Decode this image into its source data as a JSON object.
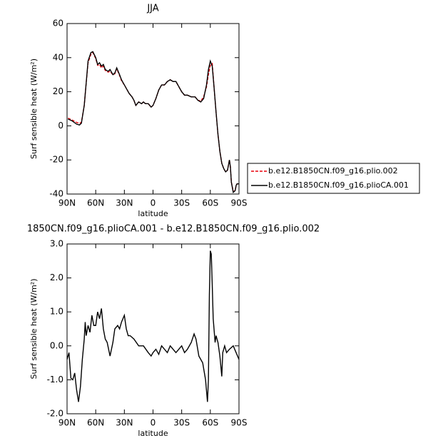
{
  "chart_data": [
    {
      "type": "line",
      "title": "JJA",
      "x_label": "latitude",
      "y_label": "Surf sensible heat (W/m²)",
      "xlim": [
        90,
        -90
      ],
      "xticks": [
        {
          "value": 90,
          "label": "90N"
        },
        {
          "value": 60,
          "label": "60N"
        },
        {
          "value": 30,
          "label": "30N"
        },
        0,
        {
          "value": -30,
          "label": "30S"
        },
        {
          "value": -60,
          "label": "60S"
        },
        {
          "value": -90,
          "label": "90S"
        }
      ],
      "ylim": [
        -40,
        60
      ],
      "yticks": [
        -40,
        -20,
        0,
        20,
        40,
        60
      ],
      "legend": "right",
      "x": [
        89,
        85,
        80,
        77,
        75,
        72,
        70,
        68,
        65,
        63,
        60,
        58,
        56,
        54,
        52,
        50,
        47,
        45,
        42,
        40,
        38,
        35,
        33,
        30,
        28,
        25,
        22,
        20,
        18,
        15,
        12,
        10,
        8,
        5,
        2,
        0,
        -3,
        -6,
        -9,
        -12,
        -15,
        -18,
        -21,
        -24,
        -27,
        -30,
        -33,
        -36,
        -40,
        -44,
        -47,
        -50,
        -53,
        -56,
        -58,
        -60,
        -62,
        -64,
        -66,
        -68,
        -70,
        -72,
        -74,
        -76,
        -78,
        -80,
        -81,
        -82,
        -84,
        -86,
        -87,
        -88,
        -90
      ],
      "series": [
        {
          "name": "b.e12.B1850CN.f09_g16.plio.002",
          "color": "#e8000b",
          "linestyle": "dashed",
          "values": [
            4.5,
            3.5,
            2,
            1.5,
            2,
            12,
            25,
            37,
            42,
            43,
            39.5,
            35.5,
            36,
            34,
            35,
            32.5,
            31.5,
            32,
            30,
            30.5,
            33.5,
            29.5,
            26.5,
            24,
            22,
            19,
            17,
            15,
            12,
            14,
            13,
            14,
            13,
            13,
            11,
            12,
            16,
            21,
            24,
            24,
            26,
            27,
            26,
            26,
            23,
            20,
            18,
            18,
            17,
            17,
            15,
            14.5,
            17,
            23,
            30,
            35.5,
            36.5,
            22,
            8,
            -5,
            -15,
            -22,
            -25,
            -27,
            -26,
            -20,
            -24,
            -33,
            -38.5,
            -38,
            -35,
            -34,
            -34
          ]
        },
        {
          "name": "b.e12.B1850CN.f09_g16.plioCA.001",
          "color": "#000000",
          "linestyle": "solid",
          "values": [
            4,
            3,
            1,
            0.5,
            1.5,
            12,
            25,
            38,
            43,
            43.5,
            40,
            36,
            37,
            35,
            36,
            33,
            32,
            33,
            30,
            31,
            34,
            30,
            27,
            24,
            22,
            19,
            17,
            15,
            12,
            14,
            13,
            14,
            13,
            13,
            11,
            12,
            16,
            21,
            24,
            24,
            26,
            27,
            26,
            26,
            23,
            20,
            18,
            18,
            17,
            17,
            15,
            14,
            16,
            24,
            33,
            38,
            35,
            22,
            8,
            -5,
            -15,
            -22,
            -25,
            -27,
            -26,
            -20,
            -24,
            -33,
            -39,
            -38,
            -35,
            -34,
            -34
          ]
        }
      ]
    },
    {
      "type": "line",
      "title": "1850CN.f09_g16.plioCA.001 - b.e12.B1850CN.f09_g16.plio.002",
      "x_label": "latitude",
      "y_label": "Surf sensible heat (W/m²)",
      "xlim": [
        90,
        -90
      ],
      "xticks": [
        {
          "value": 90,
          "label": "90N"
        },
        {
          "value": 60,
          "label": "60N"
        },
        {
          "value": 30,
          "label": "30N"
        },
        0,
        {
          "value": -30,
          "label": "30S"
        },
        {
          "value": -60,
          "label": "60S"
        },
        {
          "value": -90,
          "label": "90S"
        }
      ],
      "ylim": [
        -2,
        3
      ],
      "yticks": [
        {
          "value": -2,
          "label": "-2.0"
        },
        {
          "value": -1,
          "label": "-1.0"
        },
        {
          "value": 0,
          "label": "0.0"
        },
        {
          "value": 1,
          "label": "1.0"
        },
        {
          "value": 2,
          "label": "2.0"
        },
        {
          "value": 3,
          "label": "3.0"
        }
      ],
      "x": [
        90,
        88,
        86,
        84,
        82,
        80,
        78,
        76,
        74,
        72,
        71,
        70,
        68,
        66,
        64,
        62,
        60,
        58,
        56,
        54,
        52,
        50,
        48,
        45,
        42,
        40,
        37,
        35,
        33,
        30,
        28,
        26,
        24,
        20,
        15,
        10,
        5,
        2,
        0,
        -3,
        -6,
        -9,
        -12,
        -15,
        -18,
        -21,
        -24,
        -27,
        -30,
        -33,
        -36,
        -40,
        -43,
        -45,
        -48,
        -52,
        -55,
        -57,
        -58,
        -59,
        -60,
        -61,
        -62,
        -63,
        -65,
        -66,
        -68,
        -70,
        -72,
        -73,
        -75,
        -77,
        -80,
        -84,
        -87,
        -90
      ],
      "series": [
        {
          "color": "#000000",
          "linestyle": "solid",
          "values": [
            -0.4,
            -0.2,
            -0.95,
            -1.0,
            -0.8,
            -1.3,
            -1.65,
            -1.2,
            -0.4,
            0.2,
            0.7,
            0.3,
            0.6,
            0.4,
            0.9,
            0.6,
            0.6,
            1.0,
            0.8,
            1.1,
            0.5,
            0.2,
            0.1,
            -0.3,
            0.1,
            0.5,
            0.6,
            0.5,
            0.7,
            0.9,
            0.5,
            0.3,
            0.3,
            0.2,
            0.0,
            0.0,
            -0.2,
            -0.3,
            -0.2,
            -0.1,
            -0.25,
            0.0,
            -0.1,
            -0.2,
            0.0,
            -0.1,
            -0.2,
            -0.1,
            0.0,
            -0.2,
            -0.1,
            0.1,
            0.35,
            0.2,
            -0.3,
            -0.5,
            -1.0,
            -1.65,
            -1.0,
            1.5,
            2.8,
            2.7,
            1.8,
            0.8,
            0.1,
            0.3,
            0.1,
            -0.3,
            -0.9,
            -0.2,
            0.0,
            -0.2,
            -0.1,
            0.0,
            -0.2,
            -0.4
          ]
        }
      ]
    }
  ]
}
